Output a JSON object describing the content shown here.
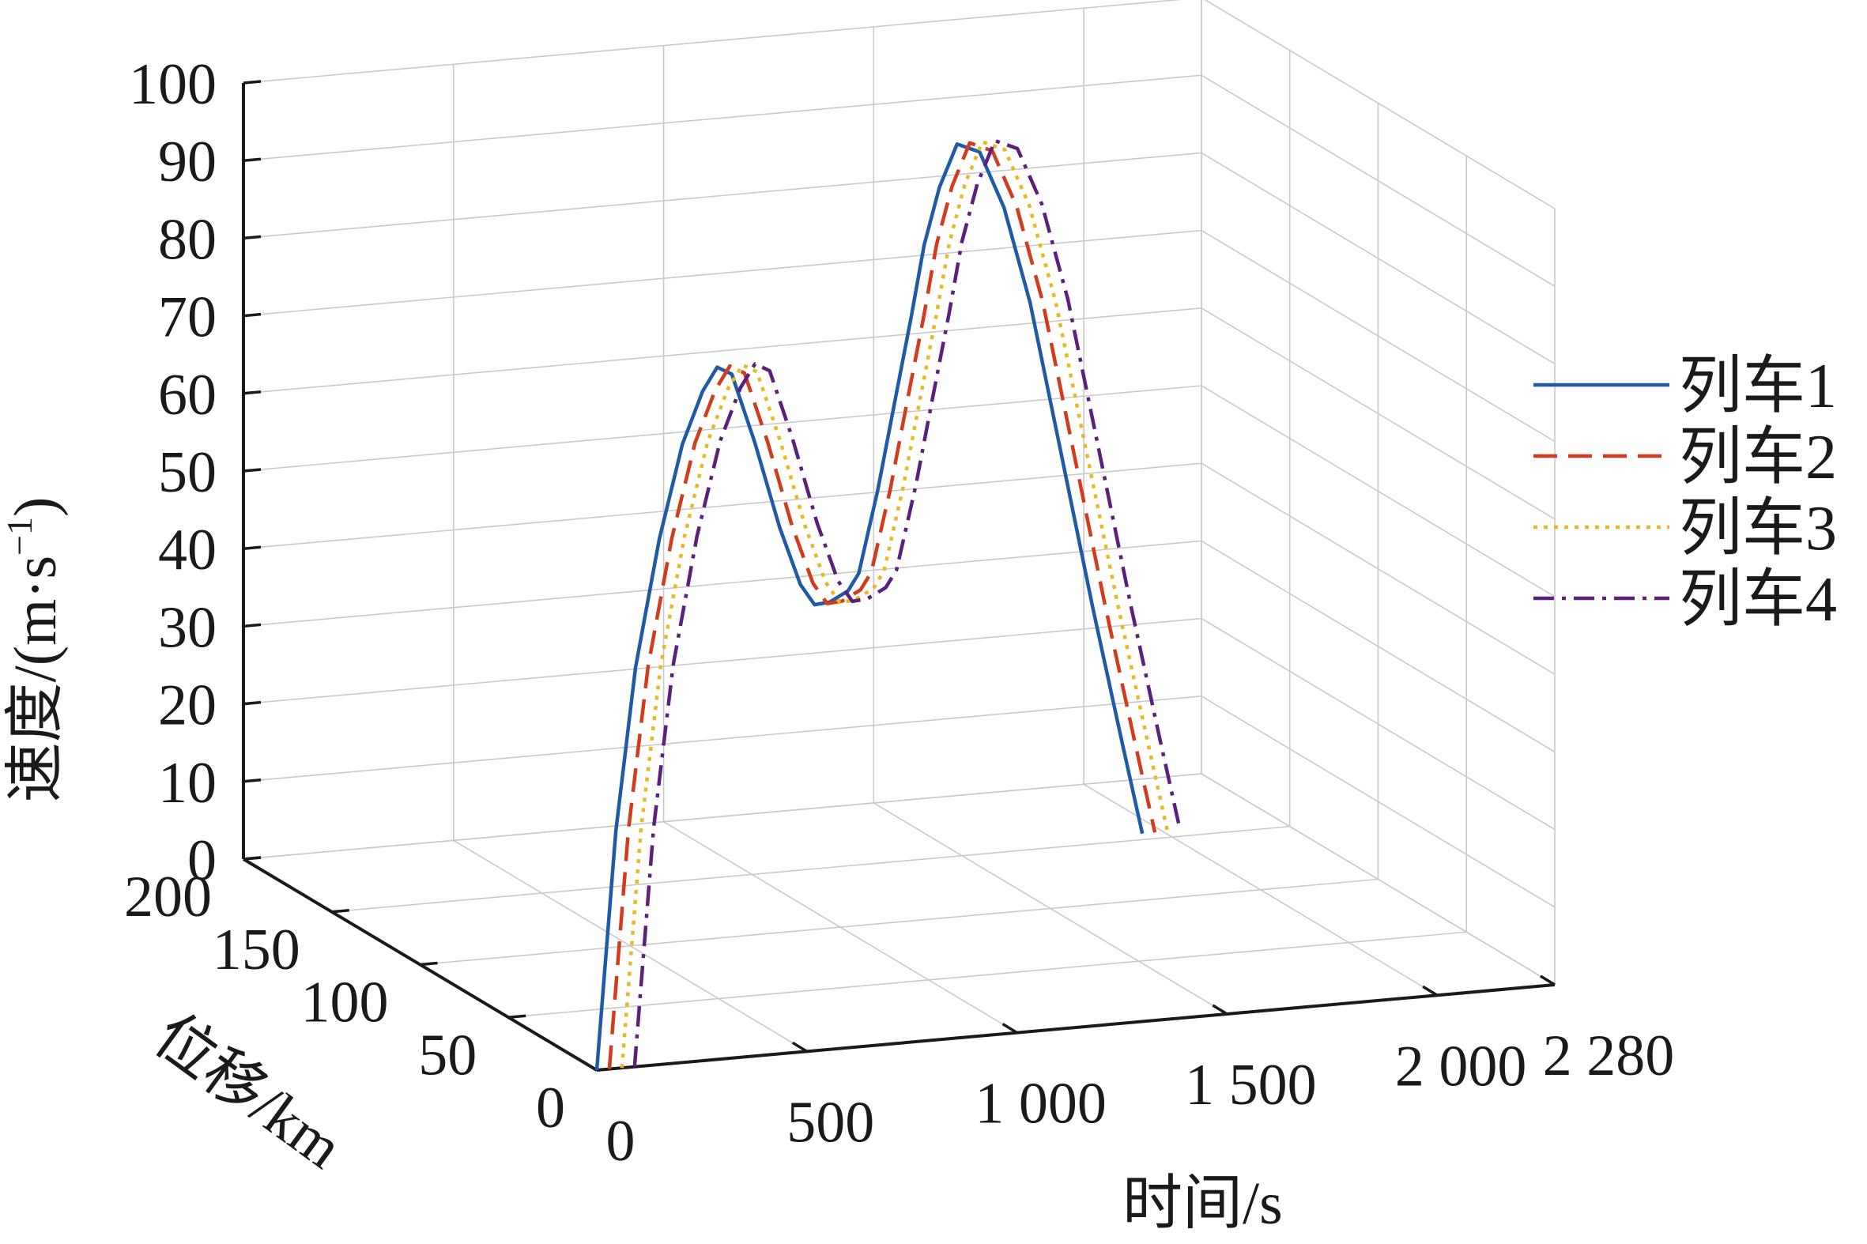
{
  "chart_data": {
    "type": "line3d",
    "xlabel": "时间/s",
    "ylabel": "位移/km",
    "zlabel": "速度/(m·s",
    "zlabel_sup": "−1",
    "zlabel_close": ")",
    "xlim": [
      0,
      2280
    ],
    "ylim": [
      0,
      200
    ],
    "zlim": [
      0,
      100
    ],
    "x_ticks": [
      {
        "value": 0,
        "label": "0"
      },
      {
        "value": 500,
        "label": "500"
      },
      {
        "value": 1000,
        "label": "1 000"
      },
      {
        "value": 1500,
        "label": "1 500"
      },
      {
        "value": 2000,
        "label": "2 000"
      },
      {
        "value": 2280,
        "label": "2 280"
      }
    ],
    "y_ticks": [
      {
        "value": 0,
        "label": "0"
      },
      {
        "value": 50,
        "label": "50"
      },
      {
        "value": 100,
        "label": "100"
      },
      {
        "value": 150,
        "label": "150"
      },
      {
        "value": 200,
        "label": "200"
      }
    ],
    "z_ticks": [
      {
        "value": 0,
        "label": "0"
      },
      {
        "value": 10,
        "label": "10"
      },
      {
        "value": 20,
        "label": "20"
      },
      {
        "value": 30,
        "label": "30"
      },
      {
        "value": 40,
        "label": "40"
      },
      {
        "value": 50,
        "label": "50"
      },
      {
        "value": 60,
        "label": "60"
      },
      {
        "value": 70,
        "label": "70"
      },
      {
        "value": 80,
        "label": "80"
      },
      {
        "value": 90,
        "label": "90"
      },
      {
        "value": 100,
        "label": "100"
      }
    ],
    "legend_position": "right",
    "series": [
      {
        "name": "列车1",
        "color": "#1f5aa6",
        "dash": "solid",
        "offset": 0,
        "points": [
          [
            0,
            0,
            0
          ],
          [
            60,
            3.5,
            30
          ],
          [
            130,
            9,
            50
          ],
          [
            220,
            17,
            65
          ],
          [
            330,
            30,
            75
          ],
          [
            420,
            40,
            80
          ],
          [
            480,
            46,
            82
          ],
          [
            540,
            52,
            80
          ],
          [
            620,
            58,
            70
          ],
          [
            700,
            63,
            58
          ],
          [
            760,
            65.5,
            50
          ],
          [
            800,
            67,
            47
          ],
          [
            840,
            68,
            47
          ],
          [
            890,
            69.5,
            48
          ],
          [
            920,
            70.5,
            50
          ],
          [
            980,
            74,
            60
          ],
          [
            1040,
            79,
            70
          ],
          [
            1110,
            86,
            80
          ],
          [
            1170,
            93,
            88
          ],
          [
            1240,
            101,
            94
          ],
          [
            1320,
            110,
            98
          ],
          [
            1420,
            121,
            95
          ],
          [
            1520,
            131,
            86
          ],
          [
            1620,
            140,
            72
          ],
          [
            1720,
            147,
            52
          ],
          [
            1820,
            152,
            30
          ],
          [
            1900,
            154.5,
            12
          ],
          [
            1950,
            155,
            0
          ]
        ]
      },
      {
        "name": "列车2",
        "color": "#d43a1c",
        "dash": "30 14",
        "offset": 30
      },
      {
        "name": "列车3",
        "color": "#e8b924",
        "dash": "5 8",
        "offset": 60
      },
      {
        "name": "列车4",
        "color": "#5b1f7d",
        "dash": "26 10 5 10",
        "offset": 90
      }
    ]
  }
}
